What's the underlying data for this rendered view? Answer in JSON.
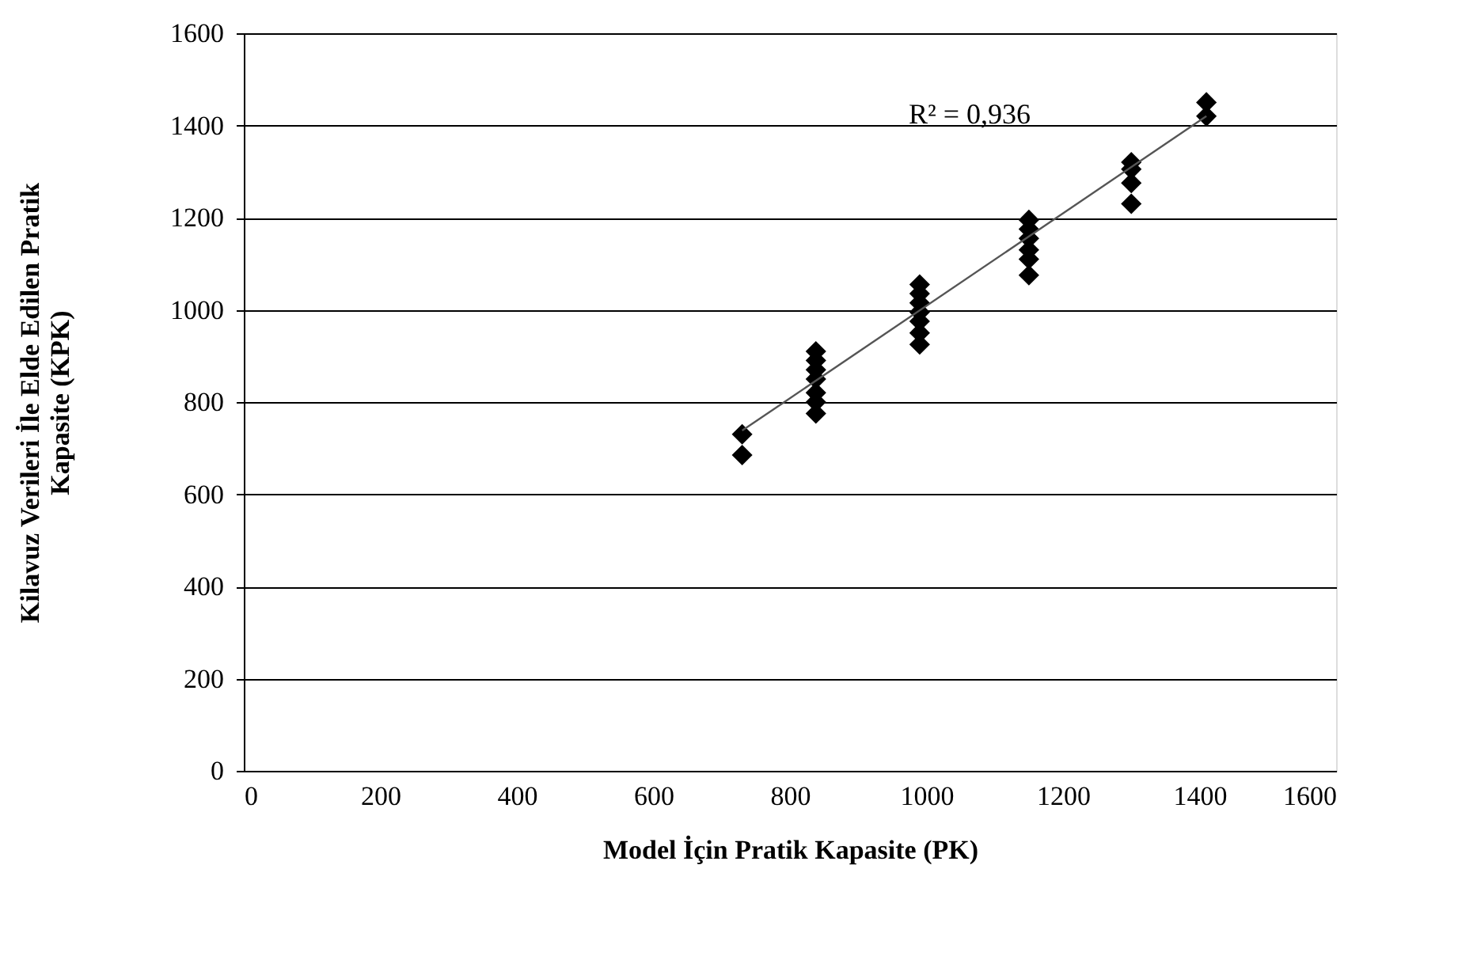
{
  "chart_data": {
    "type": "scatter",
    "xlabel": "Model İçin Pratik Kapasite (PK)",
    "ylabel": "Kilavuz Verileri İle Elde Edilen Pratik Kapasite (KPK)",
    "annotations": [
      "R² = 0,936"
    ],
    "xlim": [
      0,
      1600
    ],
    "xticks": [
      0,
      200,
      400,
      600,
      800,
      1000,
      1200,
      1400,
      1600
    ],
    "ylim": [
      0,
      1600
    ],
    "yticks": [
      0,
      200,
      400,
      600,
      800,
      1000,
      1200,
      1400,
      1600
    ],
    "grid": "y",
    "legend": false,
    "marker": "diamond",
    "series": [
      {
        "color": "#000000",
        "x": [
          730,
          730,
          838,
          838,
          838,
          838,
          838,
          838,
          838,
          990,
          990,
          990,
          990,
          990,
          990,
          990,
          1150,
          1150,
          1150,
          1150,
          1150,
          1150,
          1300,
          1300,
          1300,
          1300,
          1410,
          1410
        ],
        "values": [
          730,
          685,
          910,
          890,
          870,
          850,
          820,
          800,
          775,
          1055,
          1035,
          1015,
          995,
          975,
          950,
          925,
          1195,
          1175,
          1155,
          1130,
          1110,
          1075,
          1320,
          1305,
          1275,
          1230,
          1450,
          1420
        ]
      },
      {
        "type": "line",
        "color": "#555555",
        "marker": "none",
        "x": [
          730,
          1410
        ],
        "values": [
          738,
          1420
        ]
      }
    ]
  }
}
